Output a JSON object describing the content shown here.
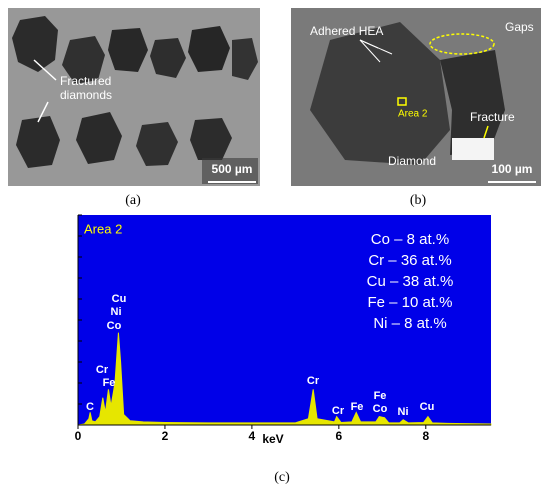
{
  "panels": {
    "a": {
      "caption": "(a)",
      "fractured": [
        "Fractured",
        "diamonds"
      ],
      "scale_bar": "500 µm"
    },
    "b": {
      "caption": "(b)",
      "adhered": "Adhered HEA",
      "gaps": "Gaps",
      "area": "Area 2",
      "fracture": "Fracture",
      "diamond": "Diamond",
      "scale_bar": "100 µm"
    }
  },
  "chart_data": {
    "type": "area",
    "caption": "(c)",
    "x_label": "keV",
    "background": "#0000e8",
    "color": "#e6e600",
    "area_label": "Area 2",
    "composition": [
      "Co – 8 at.%",
      "Cr – 36 at.%",
      "Cu – 38 at.%",
      "Fe – 10 at.%",
      "Ni – 8 at.%"
    ],
    "peak_labels": [
      "C",
      "Cr",
      "Fe",
      "Cu",
      "Ni",
      "Co",
      "Cr",
      "Cr",
      "Fe",
      "Fe",
      "Co",
      "Ni",
      "Cu"
    ],
    "x": [
      0,
      0.15,
      0.25,
      0.28,
      0.32,
      0.4,
      0.5,
      0.57,
      0.63,
      0.7,
      0.76,
      0.85,
      0.93,
      0.98,
      1.05,
      1.2,
      1.5,
      2,
      3,
      4,
      5,
      5.3,
      5.41,
      5.5,
      5.9,
      5.95,
      6.05,
      6.3,
      6.4,
      6.5,
      6.85,
      6.93,
      7.05,
      7.15,
      7.4,
      7.48,
      7.6,
      7.95,
      8.05,
      8.15,
      8.5,
      9.5
    ],
    "values": [
      0,
      0.5,
      3,
      6,
      2,
      1.5,
      4,
      13,
      6,
      17,
      9,
      20,
      44,
      30,
      5,
      2,
      1.5,
      1.2,
      1,
      1,
      1,
      3,
      17,
      3,
      1.5,
      4,
      1.2,
      1.5,
      6,
      1.5,
      1.5,
      4,
      3.5,
      1,
      1,
      2.5,
      1,
      1.2,
      4,
      1,
      0.8,
      0.5
    ],
    "xlim": [
      0,
      9.5
    ],
    "ylim": [
      0,
      100
    ],
    "xticks": [
      0,
      2,
      4,
      6,
      8
    ]
  }
}
